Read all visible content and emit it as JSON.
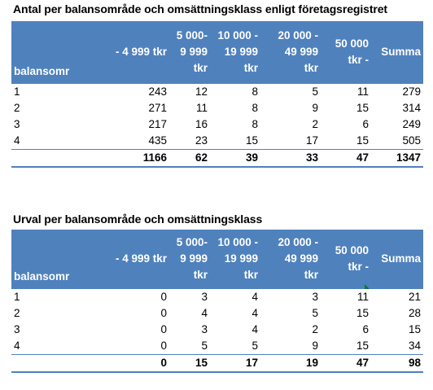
{
  "table1": {
    "title": "Antal per balansområde och omsättningsklass enligt företagsregistret",
    "headers": [
      [
        "",
        "",
        "balansomr"
      ],
      [
        "",
        "- 4 999 tkr",
        ""
      ],
      [
        "5 000-",
        "9 999",
        "tkr"
      ],
      [
        "10 000 -",
        "19 999",
        "tkr"
      ],
      [
        "20 000 -",
        "49 999",
        "tkr"
      ],
      [
        "50 000",
        "tkr -",
        ""
      ],
      [
        "",
        "Summa",
        ""
      ]
    ],
    "rows": [
      [
        "1",
        "243",
        "12",
        "8",
        "5",
        "11",
        "279"
      ],
      [
        "2",
        "271",
        "11",
        "8",
        "9",
        "15",
        "314"
      ],
      [
        "3",
        "217",
        "16",
        "8",
        "2",
        "6",
        "249"
      ],
      [
        "4",
        "435",
        "23",
        "15",
        "17",
        "15",
        "505"
      ]
    ],
    "total": [
      "",
      "1166",
      "62",
      "39",
      "33",
      "47",
      "1347"
    ]
  },
  "table2": {
    "title": "Urval per balansområde och omsättningsklass",
    "headers": [
      [
        "",
        "",
        "balansomr"
      ],
      [
        "",
        "- 4 999 tkr",
        ""
      ],
      [
        "5 000-",
        "9 999",
        "tkr"
      ],
      [
        "10 000 -",
        "19 999",
        "tkr"
      ],
      [
        "20 000 -",
        "49 999",
        "tkr"
      ],
      [
        "50 000",
        "tkr -",
        ""
      ],
      [
        "",
        "Summa",
        ""
      ]
    ],
    "rows": [
      [
        "1",
        "0",
        "3",
        "4",
        "3",
        "11",
        "21"
      ],
      [
        "2",
        "0",
        "4",
        "4",
        "5",
        "15",
        "28"
      ],
      [
        "3",
        "0",
        "3",
        "4",
        "2",
        "6",
        "15"
      ],
      [
        "4",
        "0",
        "5",
        "5",
        "9",
        "15",
        "34"
      ]
    ],
    "total": [
      "",
      "0",
      "15",
      "17",
      "19",
      "47",
      "98"
    ]
  }
}
